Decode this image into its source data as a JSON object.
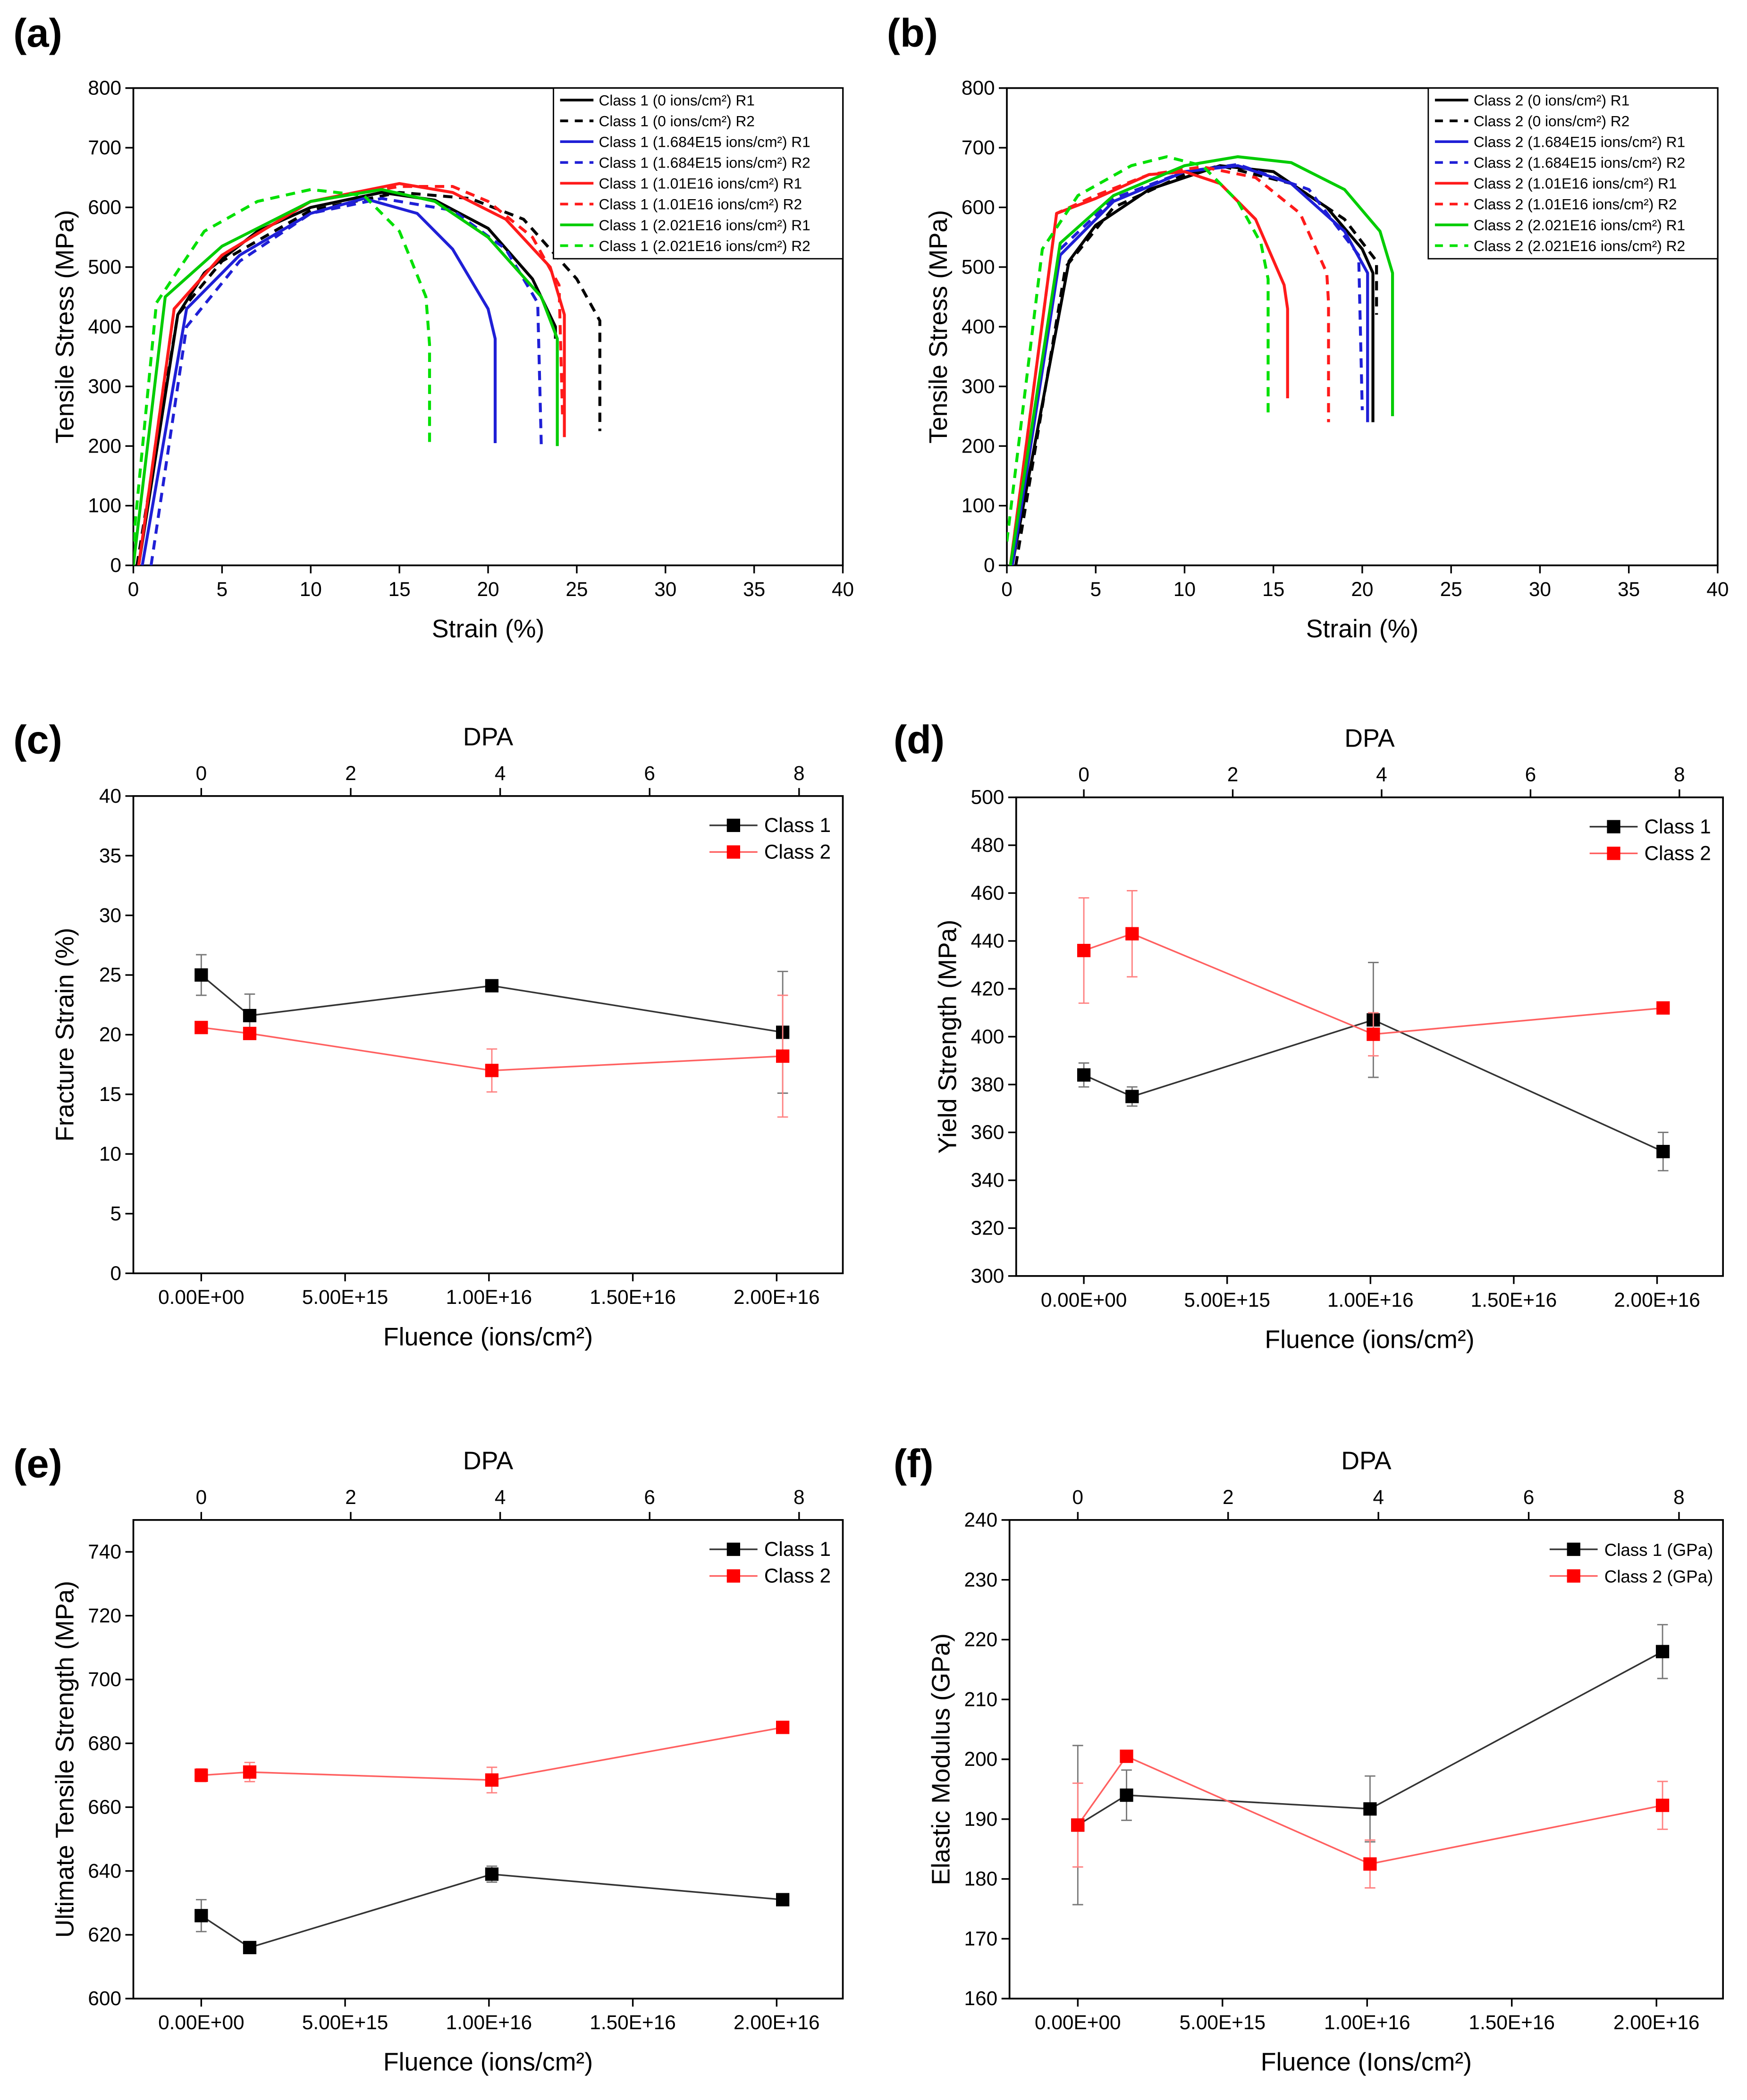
{
  "chart_data": [
    {
      "panel": "(a)",
      "type": "line",
      "xlabel": "Strain (%)",
      "ylabel": "Tensile Stress (MPa)",
      "xlim": [
        0,
        40
      ],
      "ylim": [
        0,
        800
      ],
      "xticks": [
        0,
        5,
        10,
        15,
        20,
        25,
        30,
        35,
        40
      ],
      "yticks": [
        0,
        100,
        200,
        300,
        400,
        500,
        600,
        700,
        800
      ],
      "legend_position": "top-right",
      "legend_style": "boxed",
      "series": [
        {
          "name": "Class 1 (0 ions/cm²) R1",
          "color": "#000000",
          "dash": false,
          "points": [
            [
              0.3,
              0
            ],
            [
              2.5,
              420
            ],
            [
              4,
              490
            ],
            [
              7,
              560
            ],
            [
              10,
              600
            ],
            [
              14,
              625
            ],
            [
              17,
              612
            ],
            [
              20,
              565
            ],
            [
              22.5,
              480
            ],
            [
              23.8,
              400
            ],
            [
              23.8,
              380
            ]
          ]
        },
        {
          "name": "Class 1 (0 ions/cm²) R2",
          "color": "#000000",
          "dash": true,
          "points": [
            [
              0.2,
              0
            ],
            [
              2.5,
              420
            ],
            [
              5,
              510
            ],
            [
              10,
              595
            ],
            [
              15,
              625
            ],
            [
              19,
              615
            ],
            [
              22,
              580
            ],
            [
              25,
              480
            ],
            [
              26.3,
              410
            ],
            [
              26.3,
              225
            ]
          ]
        },
        {
          "name": "Class 1 (1.684E15 ions/cm²) R1",
          "color": "#1f1fd6",
          "dash": false,
          "points": [
            [
              0.5,
              0
            ],
            [
              3,
              430
            ],
            [
              6,
              520
            ],
            [
              10,
              590
            ],
            [
              13,
              615
            ],
            [
              16,
              590
            ],
            [
              18,
              530
            ],
            [
              20,
              430
            ],
            [
              20.4,
              380
            ],
            [
              20.4,
              205
            ]
          ]
        },
        {
          "name": "Class 1 (1.684E15 ions/cm²) R2",
          "color": "#1f1fd6",
          "dash": true,
          "points": [
            [
              1,
              0
            ],
            [
              3,
              400
            ],
            [
              6,
              510
            ],
            [
              10,
              590
            ],
            [
              14,
              615
            ],
            [
              18,
              595
            ],
            [
              21,
              530
            ],
            [
              22.8,
              440
            ],
            [
              23,
              200
            ]
          ]
        },
        {
          "name": "Class 1 (1.01E16 ions/cm²) R1",
          "color": "#ff1a1a",
          "dash": false,
          "points": [
            [
              0.3,
              0
            ],
            [
              2.3,
              430
            ],
            [
              5,
              520
            ],
            [
              10,
              610
            ],
            [
              15,
              640
            ],
            [
              18,
              625
            ],
            [
              21,
              580
            ],
            [
              23.5,
              500
            ],
            [
              24.3,
              420
            ],
            [
              24.3,
              215
            ]
          ]
        },
        {
          "name": "Class 1 (1.01E16 ions/cm²) R2",
          "color": "#ff1a1a",
          "dash": true,
          "points": [
            [
              0.3,
              0
            ],
            [
              2.3,
              430
            ],
            [
              5,
              520
            ],
            [
              10,
              610
            ],
            [
              15,
              635
            ],
            [
              18,
              635
            ],
            [
              20,
              610
            ],
            [
              22.5,
              550
            ],
            [
              24,
              470
            ],
            [
              24.2,
              245
            ]
          ]
        },
        {
          "name": "Class 1 (2.021E16 ions/cm²) R1",
          "color": "#00cc00",
          "dash": false,
          "points": [
            [
              0,
              0
            ],
            [
              1.8,
              450
            ],
            [
              5,
              535
            ],
            [
              10,
              610
            ],
            [
              14,
              630
            ],
            [
              17,
              610
            ],
            [
              20,
              550
            ],
            [
              23,
              450
            ],
            [
              23.9,
              380
            ],
            [
              23.9,
              200
            ]
          ]
        },
        {
          "name": "Class 1 (2.021E16 ions/cm²) R2",
          "color": "#00e000",
          "dash": true,
          "points": [
            [
              0,
              40
            ],
            [
              1.3,
              440
            ],
            [
              4,
              560
            ],
            [
              7,
              610
            ],
            [
              10,
              630
            ],
            [
              13,
              620
            ],
            [
              15,
              560
            ],
            [
              16.5,
              450
            ],
            [
              16.7,
              370
            ],
            [
              16.7,
              200
            ]
          ]
        }
      ]
    },
    {
      "panel": "(b)",
      "type": "line",
      "xlabel": "Strain (%)",
      "ylabel": "Tensile Stress (MPa)",
      "xlim": [
        0,
        40
      ],
      "ylim": [
        0,
        800
      ],
      "xticks": [
        0,
        5,
        10,
        15,
        20,
        25,
        30,
        35,
        40
      ],
      "yticks": [
        0,
        100,
        200,
        300,
        400,
        500,
        600,
        700,
        800
      ],
      "legend_position": "top-right",
      "legend_style": "boxed",
      "series": [
        {
          "name": "Class 2 (0 ions/cm²) R1",
          "color": "#000000",
          "dash": false,
          "points": [
            [
              0.3,
              0
            ],
            [
              3.5,
              510
            ],
            [
              5,
              570
            ],
            [
              8,
              630
            ],
            [
              12,
              670
            ],
            [
              15,
              660
            ],
            [
              18,
              600
            ],
            [
              20,
              530
            ],
            [
              20.6,
              490
            ],
            [
              20.6,
              240
            ]
          ]
        },
        {
          "name": "Class 2 (0 ions/cm²) R2",
          "color": "#000000",
          "dash": true,
          "points": [
            [
              0.5,
              0
            ],
            [
              3.3,
              500
            ],
            [
              6,
              600
            ],
            [
              10,
              655
            ],
            [
              12,
              670
            ],
            [
              16,
              640
            ],
            [
              19,
              580
            ],
            [
              20.8,
              510
            ],
            [
              20.8,
              420
            ]
          ]
        },
        {
          "name": "Class 2 (1.684E15 ions/cm²) R1",
          "color": "#1f1fd6",
          "dash": false,
          "points": [
            [
              0.3,
              0
            ],
            [
              3,
              520
            ],
            [
              6,
              610
            ],
            [
              10,
              660
            ],
            [
              13,
              670
            ],
            [
              16,
              640
            ],
            [
              19,
              560
            ],
            [
              20.3,
              490
            ],
            [
              20.3,
              240
            ]
          ]
        },
        {
          "name": "Class 2 (1.684E15 ions/cm²) R2",
          "color": "#1f1fd6",
          "dash": true,
          "points": [
            [
              0.3,
              0
            ],
            [
              3,
              530
            ],
            [
              6,
              615
            ],
            [
              10,
              660
            ],
            [
              13,
              672
            ],
            [
              17,
              630
            ],
            [
              19.8,
              520
            ],
            [
              20,
              260
            ]
          ]
        },
        {
          "name": "Class 2 (1.01E16 ions/cm²) R1",
          "color": "#ff1a1a",
          "dash": false,
          "points": [
            [
              0.2,
              0
            ],
            [
              2.8,
              590
            ],
            [
              5,
              615
            ],
            [
              8,
              655
            ],
            [
              10,
              660
            ],
            [
              12,
              640
            ],
            [
              14,
              580
            ],
            [
              15.6,
              470
            ],
            [
              15.8,
              430
            ],
            [
              15.8,
              280
            ]
          ]
        },
        {
          "name": "Class 2 (1.01E16 ions/cm²) R2",
          "color": "#ff1a1a",
          "dash": true,
          "points": [
            [
              0.2,
              0
            ],
            [
              2.8,
              590
            ],
            [
              5,
              620
            ],
            [
              8,
              655
            ],
            [
              11,
              668
            ],
            [
              14,
              650
            ],
            [
              16.5,
              590
            ],
            [
              18,
              490
            ],
            [
              18.1,
              440
            ],
            [
              18.1,
              240
            ]
          ]
        },
        {
          "name": "Class 2 (2.021E16 ions/cm²) R1",
          "color": "#00cc00",
          "dash": false,
          "points": [
            [
              0.2,
              0
            ],
            [
              3,
              540
            ],
            [
              6,
              620
            ],
            [
              10,
              670
            ],
            [
              13,
              685
            ],
            [
              16,
              675
            ],
            [
              19,
              630
            ],
            [
              21,
              560
            ],
            [
              21.7,
              490
            ],
            [
              21.7,
              250
            ]
          ]
        },
        {
          "name": "Class 2 (2.021E16 ions/cm²) R2",
          "color": "#00e000",
          "dash": true,
          "points": [
            [
              0,
              40
            ],
            [
              2,
              530
            ],
            [
              4,
              620
            ],
            [
              7,
              670
            ],
            [
              9,
              685
            ],
            [
              11,
              670
            ],
            [
              13,
              610
            ],
            [
              14.3,
              540
            ],
            [
              14.7,
              480
            ],
            [
              14.7,
              250
            ]
          ]
        }
      ]
    },
    {
      "panel": "(c)",
      "type": "line",
      "xlabel": "Fluence (ions/cm²)",
      "ylabel": "Fracture Strain (%)",
      "top_label": "DPA",
      "xlim": [
        -2360000000000000.0,
        2.23e+16
      ],
      "ylim": [
        0,
        40
      ],
      "xticks": [
        0,
        5000000000000000.0,
        1e+16,
        1.5e+16,
        2e+16
      ],
      "xtick_labels": [
        "0.00E+00",
        "5.00E+15",
        "1.00E+16",
        "1.50E+16",
        "2.00E+16"
      ],
      "yticks": [
        0,
        5,
        10,
        15,
        20,
        25,
        30,
        35,
        40
      ],
      "top_ticks": [
        0,
        2,
        4,
        6,
        8
      ],
      "dpa_per_fluence": 3.85e-16,
      "legend_position": "top-right",
      "x": [
        0,
        1684000000000000.0,
        1.01e+16,
        2.021e+16
      ],
      "series": [
        {
          "name": "Class 1",
          "color": "#000000",
          "values": [
            25.0,
            21.6,
            24.1,
            20.2
          ],
          "err": [
            1.7,
            1.8,
            null,
            5.1
          ]
        },
        {
          "name": "Class 2",
          "color": "#ff0000",
          "values": [
            20.6,
            20.1,
            17.0,
            18.2
          ],
          "err": [
            null,
            null,
            1.8,
            5.1
          ]
        }
      ]
    },
    {
      "panel": "(d)",
      "type": "line",
      "xlabel": "Fluence (ions/cm²)",
      "ylabel": "Yield Strength (MPa)",
      "top_label": "DPA",
      "xlim": [
        -2360000000000000.0,
        2.23e+16
      ],
      "ylim": [
        300,
        500
      ],
      "xticks": [
        0,
        5000000000000000.0,
        1e+16,
        1.5e+16,
        2e+16
      ],
      "xtick_labels": [
        "0.00E+00",
        "5.00E+15",
        "1.00E+16",
        "1.50E+16",
        "2.00E+16"
      ],
      "yticks": [
        300,
        320,
        340,
        360,
        380,
        400,
        420,
        440,
        460,
        480,
        500
      ],
      "top_ticks": [
        0,
        2,
        4,
        6,
        8
      ],
      "dpa_per_fluence": 3.85e-16,
      "legend_position": "top-right",
      "x": [
        0,
        1684000000000000.0,
        1.01e+16,
        2.021e+16
      ],
      "series": [
        {
          "name": "Class 1",
          "color": "#000000",
          "values": [
            384,
            375,
            407,
            352
          ],
          "err": [
            5,
            4,
            24,
            8
          ]
        },
        {
          "name": "Class 2",
          "color": "#ff0000",
          "values": [
            436,
            443,
            401,
            412
          ],
          "err": [
            22,
            18,
            9,
            null
          ]
        }
      ]
    },
    {
      "panel": "(e)",
      "type": "line",
      "xlabel": "Fluence (ions/cm²)",
      "ylabel": "Ultimate Tensile Strength (MPa)",
      "top_label": "DPA",
      "xlim": [
        -2360000000000000.0,
        2.23e+16
      ],
      "ylim": [
        600,
        750
      ],
      "xticks": [
        0,
        5000000000000000.0,
        1e+16,
        1.5e+16,
        2e+16
      ],
      "xtick_labels": [
        "0.00E+00",
        "5.00E+15",
        "1.00E+16",
        "1.50E+16",
        "2.00E+16"
      ],
      "yticks": [
        600,
        620,
        640,
        660,
        680,
        700,
        720,
        740
      ],
      "top_ticks": [
        0,
        2,
        4,
        6,
        8
      ],
      "dpa_per_fluence": 3.85e-16,
      "legend_position": "top-right",
      "x": [
        0,
        1684000000000000.0,
        1.01e+16,
        2.021e+16
      ],
      "series": [
        {
          "name": "Class 1",
          "color": "#000000",
          "values": [
            626,
            616,
            639,
            631
          ],
          "err": [
            5,
            null,
            2.5,
            null
          ]
        },
        {
          "name": "Class 2",
          "color": "#ff0000",
          "values": [
            670,
            671,
            668.5,
            685
          ],
          "err": [
            2,
            3,
            4,
            null
          ]
        }
      ]
    },
    {
      "panel": "(f)",
      "type": "line",
      "xlabel": "Fluence (Ions/cm²)",
      "ylabel": "Elastic Modulus (GPa)",
      "top_label": "DPA",
      "xlim": [
        -2360000000000000.0,
        2.23e+16
      ],
      "ylim": [
        160,
        240
      ],
      "xticks": [
        0,
        5000000000000000.0,
        1e+16,
        1.5e+16,
        2e+16
      ],
      "xtick_labels": [
        "0.00E+00",
        "5.00E+15",
        "1.00E+16",
        "1.50E+16",
        "2.00E+16"
      ],
      "yticks": [
        160,
        170,
        180,
        190,
        200,
        210,
        220,
        230,
        240
      ],
      "top_ticks": [
        0,
        2,
        4,
        6,
        8
      ],
      "dpa_per_fluence": 3.85e-16,
      "legend_position": "top-right",
      "x": [
        0,
        1684000000000000.0,
        1.01e+16,
        2.021e+16
      ],
      "series": [
        {
          "name": "Class 1 (GPa)",
          "color": "#000000",
          "values": [
            189,
            194,
            191.7,
            218
          ],
          "err": [
            13.3,
            4.2,
            5.5,
            4.5
          ]
        },
        {
          "name": "Class 2 (GPa)",
          "color": "#ff0000",
          "values": [
            189,
            200.5,
            182.5,
            192.3
          ],
          "err": [
            7,
            null,
            4,
            4
          ]
        }
      ]
    }
  ]
}
